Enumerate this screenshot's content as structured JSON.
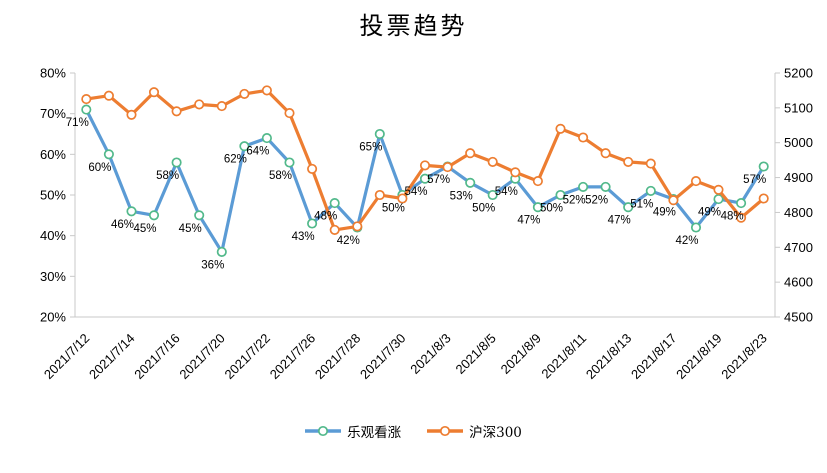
{
  "chart_data": {
    "type": "line",
    "title": "投票趋势",
    "grid": false,
    "legend_position": "bottom",
    "x_tick_labels": [
      "2021/7/12",
      "2021/7/14",
      "2021/7/16",
      "2021/7/20",
      "2021/7/22",
      "2021/7/26",
      "2021/7/28",
      "2021/7/30",
      "2021/8/3",
      "2021/8/5",
      "2021/8/9",
      "2021/8/11",
      "2021/8/13",
      "2021/8/17",
      "2021/8/19",
      "2021/8/23"
    ],
    "x_label_every_nth_point": 2,
    "left_axis": {
      "min": 20,
      "max": 80,
      "tick_labels": [
        "80%",
        "70%",
        "60%",
        "50%",
        "40%",
        "30%",
        "20%"
      ]
    },
    "right_axis": {
      "min": 4500,
      "max": 5200,
      "tick_labels": [
        "5200",
        "5100",
        "5000",
        "4900",
        "4800",
        "4700",
        "4600",
        "4500"
      ]
    },
    "series": [
      {
        "name": "乐观看涨",
        "axis": "left",
        "line_color": "#5B9BD5",
        "marker_ring_color": "#52B98B",
        "values": [
          71,
          60,
          46,
          45,
          58,
          45,
          36,
          62,
          64,
          58,
          43,
          48,
          42,
          65,
          50,
          54,
          57,
          53,
          50,
          54,
          47,
          50,
          52,
          52,
          47,
          51,
          49,
          42,
          49,
          48,
          57
        ],
        "point_labels": [
          "71%",
          "60%",
          "46%",
          "45%",
          "58%",
          "45%",
          "36%",
          "62%",
          "64%",
          "58%",
          "43%",
          "48%",
          "42%",
          "65%",
          "50%",
          "54%",
          "57%",
          "53%",
          "50%",
          "54%",
          "47%",
          "50%",
          "52%",
          "52%",
          "47%",
          "51%",
          "49%",
          "42%",
          "49%",
          "48%",
          "57%"
        ]
      },
      {
        "name": "沪深300",
        "axis": "right",
        "line_color": "#ED7D31",
        "marker_ring_color": "#ED7D31",
        "values": [
          5125,
          5135,
          5080,
          5145,
          5090,
          5110,
          5105,
          5140,
          5150,
          5085,
          4925,
          4750,
          4760,
          4850,
          4840,
          4935,
          4930,
          4970,
          4945,
          4915,
          4890,
          5040,
          5015,
          4970,
          4945,
          4940,
          4835,
          4890,
          4865,
          4785,
          4840
        ],
        "point_labels": []
      }
    ],
    "colors": {
      "axis_line": "#C9C9C9",
      "text": "#000000",
      "background": "#FFFFFF",
      "marker_fill": "#FFFFFF"
    }
  }
}
